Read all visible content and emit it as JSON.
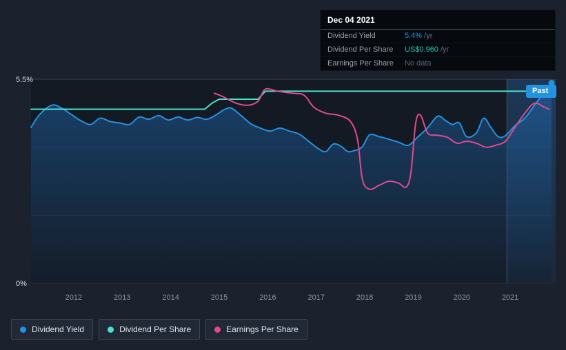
{
  "tooltip": {
    "date": "Dec 04 2021",
    "rows": [
      {
        "label": "Dividend Yield",
        "value": "5.4%",
        "suffix": " /yr",
        "color": "#2492df"
      },
      {
        "label": "Dividend Per Share",
        "value": "US$0.960",
        "suffix": " /yr",
        "color": "#21c6b2"
      },
      {
        "label": "Earnings Per Share",
        "value": "No data",
        "suffix": "",
        "color": "#5d6470"
      }
    ]
  },
  "past_label": "Past",
  "legend": [
    {
      "label": "Dividend Yield",
      "color": "#2492df"
    },
    {
      "label": "Dividend Per Share",
      "color": "#4be0cf"
    },
    {
      "label": "Earnings Per Share",
      "color": "#e14a8e"
    }
  ],
  "chart_data": {
    "type": "line",
    "title": "Dividend yield, dividend per share and earnings per share history",
    "x_range": [
      2011.12,
      2021.85
    ],
    "x_axis": {
      "ticks": [
        2012,
        2013,
        2014,
        2015,
        2016,
        2017,
        2018,
        2019,
        2020,
        2021
      ]
    },
    "y_axis": {
      "min": 0,
      "max": 5.5,
      "unit": "%",
      "labels": [
        {
          "value": 5.5,
          "text": "5.5%"
        },
        {
          "value": 0,
          "text": "0%"
        }
      ]
    },
    "y2_axis": {
      "min": 0,
      "max": 1.02,
      "unit": "US$"
    },
    "gridlines": [
      0,
      1.833,
      3.667,
      5.5
    ],
    "past_start": 2020.93,
    "legend_position": "bottom-left",
    "series": [
      {
        "name": "Dividend Yield",
        "axis": "y1",
        "unit": "%",
        "color": "#2492df",
        "area": true,
        "smooth": true,
        "end_dot": true,
        "points": [
          [
            2011.12,
            4.2
          ],
          [
            2011.3,
            4.55
          ],
          [
            2011.55,
            4.8
          ],
          [
            2011.75,
            4.72
          ],
          [
            2011.95,
            4.55
          ],
          [
            2012.15,
            4.38
          ],
          [
            2012.35,
            4.28
          ],
          [
            2012.55,
            4.45
          ],
          [
            2012.75,
            4.36
          ],
          [
            2012.95,
            4.32
          ],
          [
            2013.15,
            4.28
          ],
          [
            2013.35,
            4.48
          ],
          [
            2013.55,
            4.42
          ],
          [
            2013.75,
            4.52
          ],
          [
            2013.95,
            4.4
          ],
          [
            2014.15,
            4.48
          ],
          [
            2014.35,
            4.4
          ],
          [
            2014.55,
            4.47
          ],
          [
            2014.75,
            4.42
          ],
          [
            2014.95,
            4.55
          ],
          [
            2015.1,
            4.68
          ],
          [
            2015.25,
            4.72
          ],
          [
            2015.45,
            4.52
          ],
          [
            2015.65,
            4.3
          ],
          [
            2015.85,
            4.18
          ],
          [
            2016.05,
            4.1
          ],
          [
            2016.25,
            4.18
          ],
          [
            2016.45,
            4.1
          ],
          [
            2016.65,
            4.02
          ],
          [
            2016.85,
            3.82
          ],
          [
            2017.05,
            3.62
          ],
          [
            2017.2,
            3.55
          ],
          [
            2017.35,
            3.75
          ],
          [
            2017.5,
            3.7
          ],
          [
            2017.65,
            3.55
          ],
          [
            2017.8,
            3.58
          ],
          [
            2017.95,
            3.68
          ],
          [
            2018.1,
            4.0
          ],
          [
            2018.3,
            3.95
          ],
          [
            2018.5,
            3.88
          ],
          [
            2018.7,
            3.8
          ],
          [
            2018.9,
            3.72
          ],
          [
            2019.1,
            3.95
          ],
          [
            2019.3,
            4.2
          ],
          [
            2019.5,
            4.5
          ],
          [
            2019.65,
            4.4
          ],
          [
            2019.8,
            4.28
          ],
          [
            2019.95,
            4.32
          ],
          [
            2020.1,
            3.95
          ],
          [
            2020.3,
            4.05
          ],
          [
            2020.45,
            4.45
          ],
          [
            2020.6,
            4.2
          ],
          [
            2020.75,
            3.95
          ],
          [
            2020.9,
            3.98
          ],
          [
            2021.1,
            4.25
          ],
          [
            2021.3,
            4.45
          ],
          [
            2021.5,
            4.8
          ],
          [
            2021.7,
            5.15
          ],
          [
            2021.85,
            5.4
          ]
        ]
      },
      {
        "name": "Dividend Per Share",
        "axis": "y2",
        "unit": "US$",
        "color": "#4be0cf",
        "area": false,
        "smooth": false,
        "end_dot": false,
        "points": [
          [
            2011.12,
            0.87
          ],
          [
            2014.7,
            0.87
          ],
          [
            2014.85,
            0.9
          ],
          [
            2015.0,
            0.92
          ],
          [
            2015.8,
            0.92
          ],
          [
            2015.95,
            0.96
          ],
          [
            2021.85,
            0.96
          ]
        ]
      },
      {
        "name": "Earnings Per Share",
        "axis": "y2",
        "unit": "US$",
        "color": "#e14a8e",
        "area": false,
        "smooth": true,
        "end_dot": false,
        "points": [
          [
            2014.9,
            0.95
          ],
          [
            2015.1,
            0.93
          ],
          [
            2015.35,
            0.9
          ],
          [
            2015.6,
            0.89
          ],
          [
            2015.8,
            0.91
          ],
          [
            2015.95,
            0.97
          ],
          [
            2016.2,
            0.96
          ],
          [
            2016.5,
            0.95
          ],
          [
            2016.75,
            0.94
          ],
          [
            2016.95,
            0.88
          ],
          [
            2017.2,
            0.85
          ],
          [
            2017.45,
            0.84
          ],
          [
            2017.7,
            0.81
          ],
          [
            2017.85,
            0.72
          ],
          [
            2017.95,
            0.52
          ],
          [
            2018.1,
            0.47
          ],
          [
            2018.3,
            0.49
          ],
          [
            2018.5,
            0.51
          ],
          [
            2018.7,
            0.5
          ],
          [
            2018.85,
            0.48
          ],
          [
            2018.95,
            0.55
          ],
          [
            2019.05,
            0.8
          ],
          [
            2019.15,
            0.84
          ],
          [
            2019.3,
            0.75
          ],
          [
            2019.5,
            0.74
          ],
          [
            2019.7,
            0.73
          ],
          [
            2019.9,
            0.7
          ],
          [
            2020.1,
            0.71
          ],
          [
            2020.3,
            0.7
          ],
          [
            2020.5,
            0.68
          ],
          [
            2020.7,
            0.69
          ],
          [
            2020.9,
            0.71
          ],
          [
            2021.1,
            0.78
          ],
          [
            2021.3,
            0.85
          ],
          [
            2021.5,
            0.9
          ],
          [
            2021.7,
            0.88
          ],
          [
            2021.8,
            0.87
          ]
        ]
      }
    ]
  }
}
